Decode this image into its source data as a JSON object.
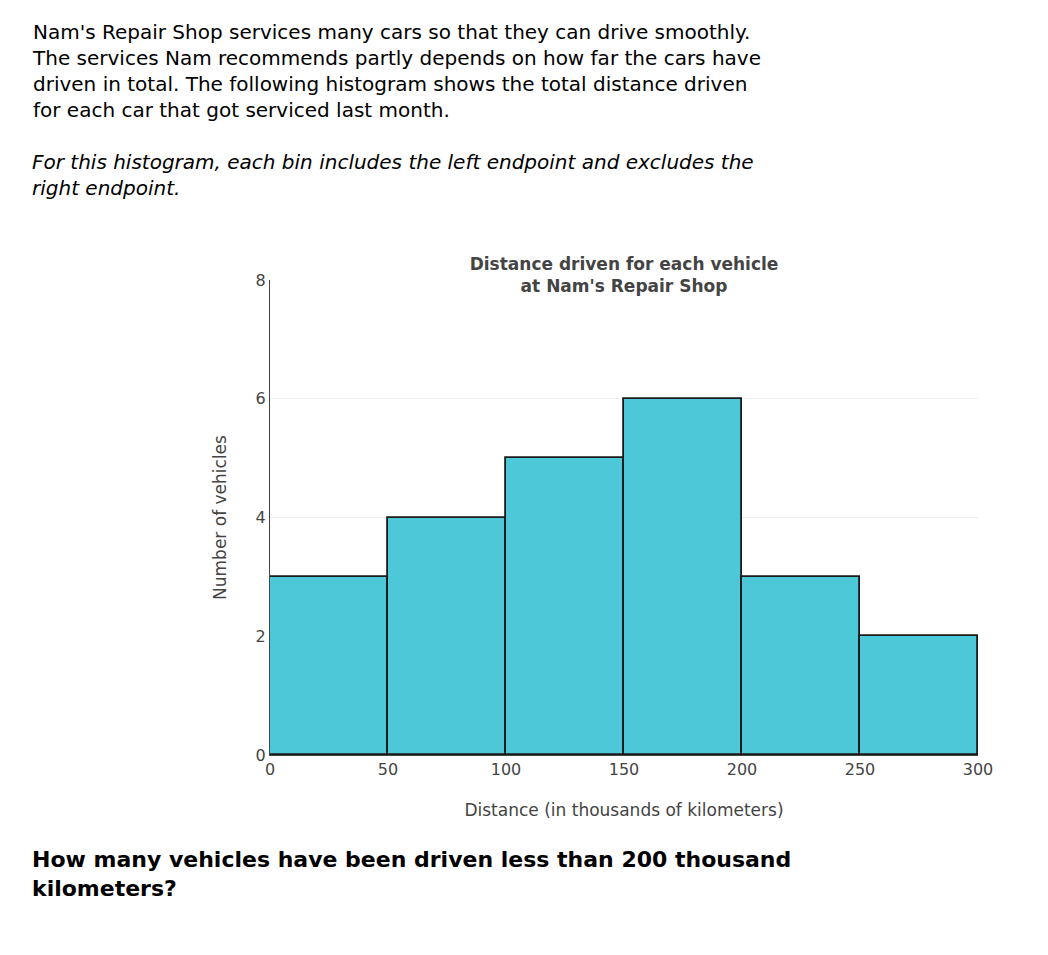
{
  "chart_data": {
    "type": "histogram",
    "title": "Distance driven for each vehicle\nat Nam's Repair Shop",
    "xlabel": "Distance (in thousands of kilometers)",
    "ylabel": "Number of vehicles",
    "bins": [
      0,
      50,
      100,
      150,
      200,
      250,
      300
    ],
    "values": [
      3,
      4,
      5,
      6,
      3,
      2
    ],
    "color": "#4DC8D8",
    "xlim": [
      0,
      300
    ],
    "ylim": [
      0,
      8
    ],
    "xticks": [
      0,
      50,
      100,
      150,
      200,
      250,
      300
    ],
    "yticks": [
      0,
      2,
      4,
      6,
      8
    ],
    "grid": true,
    "annotations": [
      "Nam's Repair Shop services many cars so that they can drive smoothly.\nThe services Nam recommends partly depends on how far the cars have\ndriven in total. The following histogram shows the total distance driven\nfor each car that got serviced last month.",
      "For this histogram, each bin includes the left endpoint and excludes the\nright endpoint.",
      "How many vehicles have been driven less than 200 thousand\nkilometers?"
    ]
  }
}
